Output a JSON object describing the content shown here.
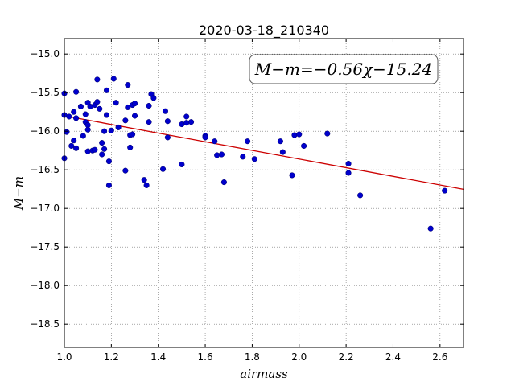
{
  "chart_data": {
    "type": "scatter",
    "title": "2020-03-18_210340",
    "xlabel": "airmass",
    "ylabel": "M−m",
    "xlim": [
      1.0,
      2.7
    ],
    "ylim": [
      -18.8,
      -14.8
    ],
    "y_inverted": true,
    "grid": true,
    "xticks": [
      1.0,
      1.2,
      1.4,
      1.6,
      1.8,
      2.0,
      2.2,
      2.4,
      2.6
    ],
    "xtick_labels": [
      "1.0",
      "1.2",
      "1.4",
      "1.6",
      "1.8",
      "2.0",
      "2.2",
      "2.4",
      "2.6"
    ],
    "yticks": [
      -15.0,
      -15.5,
      -16.0,
      -16.5,
      -17.0,
      -17.5,
      -18.0,
      -18.5
    ],
    "ytick_labels": [
      "−15.0",
      "−15.5",
      "−16.0",
      "−16.5",
      "−17.0",
      "−17.5",
      "−18.0",
      "−18.5"
    ],
    "annotation": "M−m=−0.56χ−15.24",
    "fit": {
      "slope": -0.56,
      "intercept": -15.24,
      "color": "#cc0000"
    },
    "point_color": "#0000cc",
    "points": [
      {
        "x": 1.0,
        "y": -15.51
      },
      {
        "x": 1.0,
        "y": -15.79
      },
      {
        "x": 1.0,
        "y": -16.35
      },
      {
        "x": 1.01,
        "y": -16.01
      },
      {
        "x": 1.02,
        "y": -15.81
      },
      {
        "x": 1.03,
        "y": -16.19
      },
      {
        "x": 1.04,
        "y": -15.75
      },
      {
        "x": 1.04,
        "y": -16.12
      },
      {
        "x": 1.05,
        "y": -15.49
      },
      {
        "x": 1.05,
        "y": -15.83
      },
      {
        "x": 1.05,
        "y": -16.22
      },
      {
        "x": 1.07,
        "y": -15.68
      },
      {
        "x": 1.08,
        "y": -16.06
      },
      {
        "x": 1.09,
        "y": -15.78
      },
      {
        "x": 1.09,
        "y": -15.88
      },
      {
        "x": 1.1,
        "y": -15.63
      },
      {
        "x": 1.1,
        "y": -15.92
      },
      {
        "x": 1.1,
        "y": -15.98
      },
      {
        "x": 1.1,
        "y": -16.26
      },
      {
        "x": 1.11,
        "y": -15.68
      },
      {
        "x": 1.12,
        "y": -16.25
      },
      {
        "x": 1.13,
        "y": -15.66
      },
      {
        "x": 1.13,
        "y": -16.24
      },
      {
        "x": 1.14,
        "y": -15.33
      },
      {
        "x": 1.14,
        "y": -15.62
      },
      {
        "x": 1.15,
        "y": -15.71
      },
      {
        "x": 1.16,
        "y": -16.15
      },
      {
        "x": 1.16,
        "y": -16.3
      },
      {
        "x": 1.17,
        "y": -16.23
      },
      {
        "x": 1.17,
        "y": -16.0
      },
      {
        "x": 1.18,
        "y": -15.47
      },
      {
        "x": 1.18,
        "y": -15.79
      },
      {
        "x": 1.19,
        "y": -16.39
      },
      {
        "x": 1.19,
        "y": -16.7
      },
      {
        "x": 1.2,
        "y": -15.99
      },
      {
        "x": 1.21,
        "y": -15.32
      },
      {
        "x": 1.22,
        "y": -15.63
      },
      {
        "x": 1.23,
        "y": -15.95
      },
      {
        "x": 1.26,
        "y": -16.51
      },
      {
        "x": 1.26,
        "y": -15.86
      },
      {
        "x": 1.27,
        "y": -15.69
      },
      {
        "x": 1.27,
        "y": -15.4
      },
      {
        "x": 1.28,
        "y": -16.05
      },
      {
        "x": 1.28,
        "y": -16.21
      },
      {
        "x": 1.29,
        "y": -16.04
      },
      {
        "x": 1.29,
        "y": -15.66
      },
      {
        "x": 1.3,
        "y": -15.64
      },
      {
        "x": 1.3,
        "y": -15.8
      },
      {
        "x": 1.34,
        "y": -16.63
      },
      {
        "x": 1.35,
        "y": -16.7
      },
      {
        "x": 1.36,
        "y": -15.67
      },
      {
        "x": 1.36,
        "y": -15.88
      },
      {
        "x": 1.37,
        "y": -15.52
      },
      {
        "x": 1.38,
        "y": -15.57
      },
      {
        "x": 1.42,
        "y": -16.49
      },
      {
        "x": 1.43,
        "y": -15.74
      },
      {
        "x": 1.44,
        "y": -15.87
      },
      {
        "x": 1.44,
        "y": -16.08
      },
      {
        "x": 1.5,
        "y": -16.43
      },
      {
        "x": 1.5,
        "y": -15.91
      },
      {
        "x": 1.52,
        "y": -15.81
      },
      {
        "x": 1.52,
        "y": -15.89
      },
      {
        "x": 1.54,
        "y": -15.88
      },
      {
        "x": 1.6,
        "y": -16.06
      },
      {
        "x": 1.6,
        "y": -16.08
      },
      {
        "x": 1.64,
        "y": -16.13
      },
      {
        "x": 1.65,
        "y": -16.31
      },
      {
        "x": 1.67,
        "y": -16.3
      },
      {
        "x": 1.68,
        "y": -16.66
      },
      {
        "x": 1.76,
        "y": -16.33
      },
      {
        "x": 1.78,
        "y": -16.13
      },
      {
        "x": 1.81,
        "y": -16.36
      },
      {
        "x": 1.92,
        "y": -16.13
      },
      {
        "x": 1.93,
        "y": -16.27
      },
      {
        "x": 1.97,
        "y": -16.57
      },
      {
        "x": 1.98,
        "y": -16.05
      },
      {
        "x": 2.0,
        "y": -16.04
      },
      {
        "x": 2.02,
        "y": -16.19
      },
      {
        "x": 2.12,
        "y": -16.03
      },
      {
        "x": 2.21,
        "y": -16.42
      },
      {
        "x": 2.21,
        "y": -16.54
      },
      {
        "x": 2.26,
        "y": -16.83
      },
      {
        "x": 2.56,
        "y": -17.26
      },
      {
        "x": 2.62,
        "y": -16.77
      }
    ]
  }
}
